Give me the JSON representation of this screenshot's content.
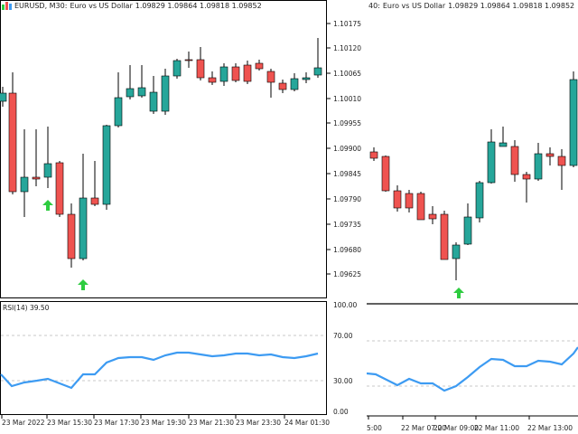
{
  "left": {
    "header": {
      "symbol": "EURUSD, M30:",
      "name": "Euro vs US Dollar",
      "ohlc": "1.09829 1.09864 1.09818 1.09852"
    },
    "price_labels": [
      "1.10175",
      "1.10120",
      "1.10065",
      "1.10010",
      "1.09955",
      "1.09900",
      "1.09845",
      "1.09790",
      "1.09735",
      "1.09680",
      "1.09625"
    ],
    "rsi": {
      "label": "RSI(14) 39.50",
      "levels": [
        "100.00",
        "70.00",
        "30.00",
        "0.00"
      ]
    },
    "time_labels": [
      "23 Mar 2022",
      "23 Mar 15:30",
      "23 Mar 17:30",
      "23 Mar 19:30",
      "23 Mar 21:30",
      "23 Mar 23:30",
      "24 Mar 01:30"
    ]
  },
  "right": {
    "header": {
      "symbol": "40:",
      "name": "Euro vs US Dollar",
      "ohlc": "1.09829 1.09864 1.09818 1.09852"
    },
    "time_labels": [
      "5:00",
      "22 Mar 07:00",
      "22 Mar 09:00",
      "22 Mar 11:00",
      "22 Mar 13:00"
    ]
  },
  "colors": {
    "bull": "#26a69a",
    "bear": "#ef5350",
    "rsi": "#3d9bf2",
    "arrow": "#2ecc40",
    "grid": "#c8c8c8",
    "axis": "#000000"
  }
}
